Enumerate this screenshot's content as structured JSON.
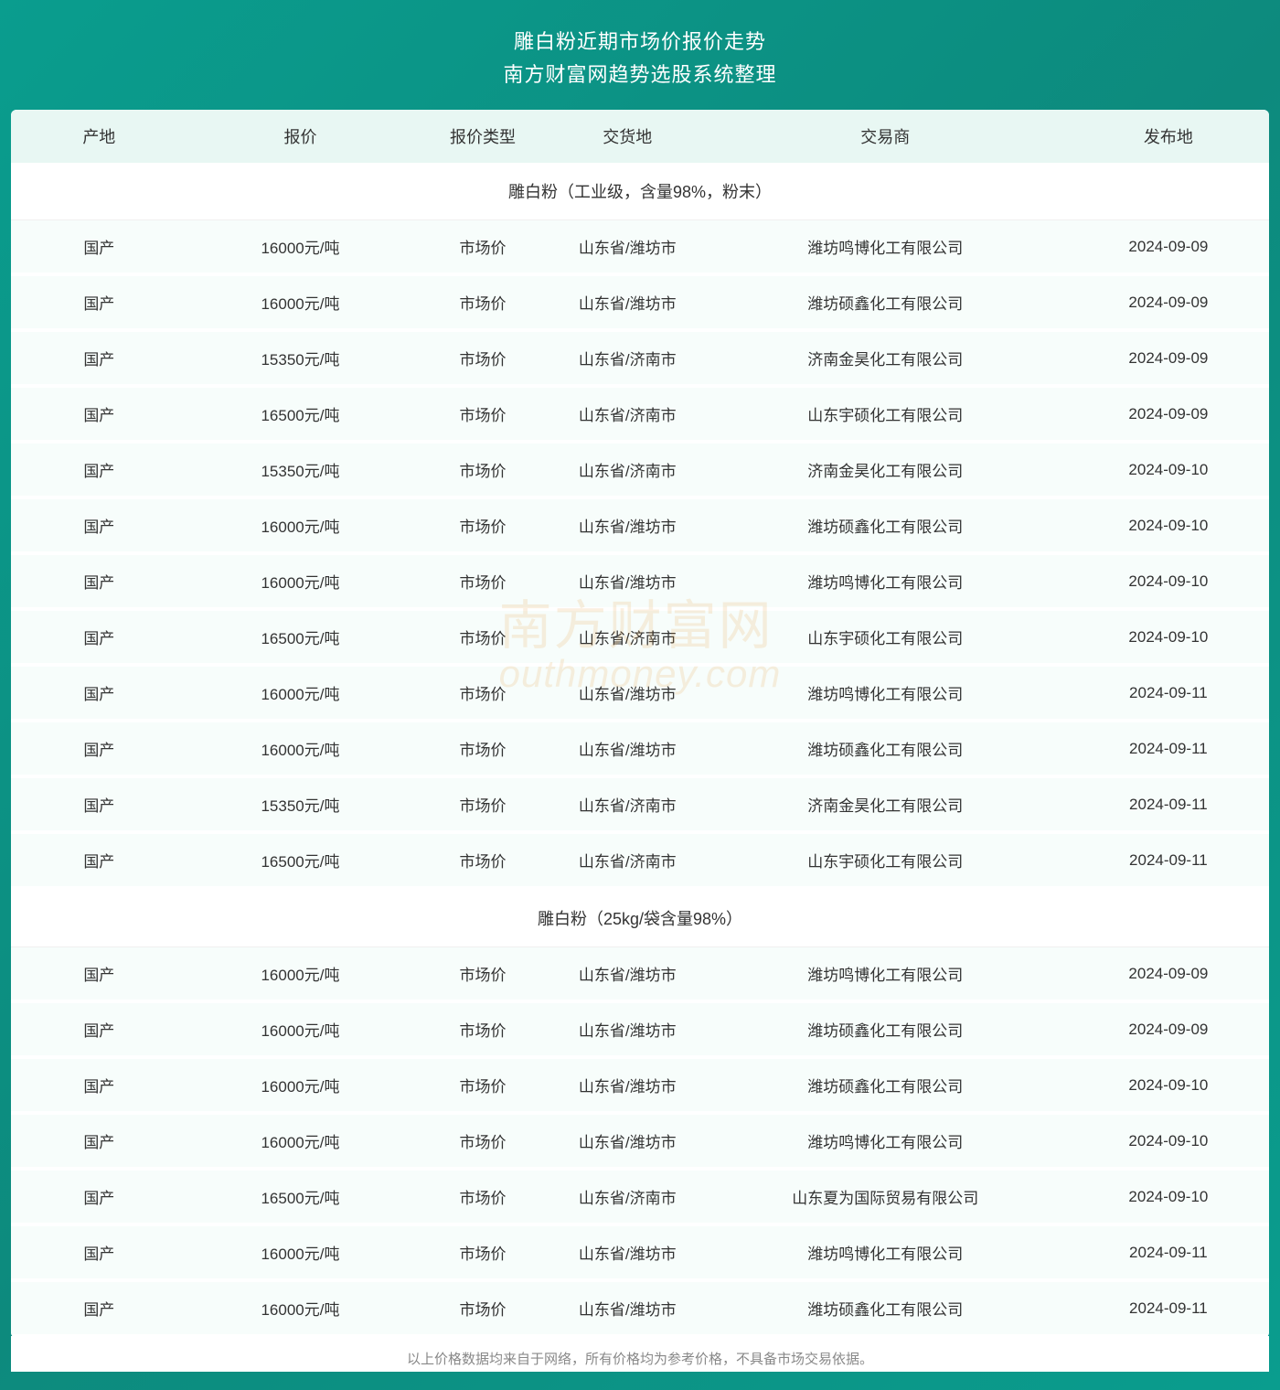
{
  "header": {
    "title_main": "雕白粉近期市场价报价走势",
    "title_sub": "南方财富网趋势选股系统整理"
  },
  "table": {
    "columns": [
      "产地",
      "报价",
      "报价类型",
      "交货地",
      "交易商",
      "发布地"
    ],
    "column_widths": [
      "14%",
      "18%",
      "11%",
      "12%",
      "29%",
      "16%"
    ],
    "header_bg": "#e8f7f3",
    "row_bg": "#f7fdfb",
    "section_bg": "#ffffff",
    "text_color": "#333333",
    "font_size_header": 18,
    "font_size_cell": 17,
    "sections": [
      {
        "title": "雕白粉（工业级，含量98%，粉末）",
        "rows": [
          [
            "国产",
            "16000元/吨",
            "市场价",
            "山东省/潍坊市",
            "潍坊鸣博化工有限公司",
            "2024-09-09"
          ],
          [
            "国产",
            "16000元/吨",
            "市场价",
            "山东省/潍坊市",
            "潍坊硕鑫化工有限公司",
            "2024-09-09"
          ],
          [
            "国产",
            "15350元/吨",
            "市场价",
            "山东省/济南市",
            "济南金昊化工有限公司",
            "2024-09-09"
          ],
          [
            "国产",
            "16500元/吨",
            "市场价",
            "山东省/济南市",
            "山东宇硕化工有限公司",
            "2024-09-09"
          ],
          [
            "国产",
            "15350元/吨",
            "市场价",
            "山东省/济南市",
            "济南金昊化工有限公司",
            "2024-09-10"
          ],
          [
            "国产",
            "16000元/吨",
            "市场价",
            "山东省/潍坊市",
            "潍坊硕鑫化工有限公司",
            "2024-09-10"
          ],
          [
            "国产",
            "16000元/吨",
            "市场价",
            "山东省/潍坊市",
            "潍坊鸣博化工有限公司",
            "2024-09-10"
          ],
          [
            "国产",
            "16500元/吨",
            "市场价",
            "山东省/济南市",
            "山东宇硕化工有限公司",
            "2024-09-10"
          ],
          [
            "国产",
            "16000元/吨",
            "市场价",
            "山东省/潍坊市",
            "潍坊鸣博化工有限公司",
            "2024-09-11"
          ],
          [
            "国产",
            "16000元/吨",
            "市场价",
            "山东省/潍坊市",
            "潍坊硕鑫化工有限公司",
            "2024-09-11"
          ],
          [
            "国产",
            "15350元/吨",
            "市场价",
            "山东省/济南市",
            "济南金昊化工有限公司",
            "2024-09-11"
          ],
          [
            "国产",
            "16500元/吨",
            "市场价",
            "山东省/济南市",
            "山东宇硕化工有限公司",
            "2024-09-11"
          ]
        ]
      },
      {
        "title": "雕白粉（25kg/袋含量98%）",
        "rows": [
          [
            "国产",
            "16000元/吨",
            "市场价",
            "山东省/潍坊市",
            "潍坊鸣博化工有限公司",
            "2024-09-09"
          ],
          [
            "国产",
            "16000元/吨",
            "市场价",
            "山东省/潍坊市",
            "潍坊硕鑫化工有限公司",
            "2024-09-09"
          ],
          [
            "国产",
            "16000元/吨",
            "市场价",
            "山东省/潍坊市",
            "潍坊硕鑫化工有限公司",
            "2024-09-10"
          ],
          [
            "国产",
            "16000元/吨",
            "市场价",
            "山东省/潍坊市",
            "潍坊鸣博化工有限公司",
            "2024-09-10"
          ],
          [
            "国产",
            "16500元/吨",
            "市场价",
            "山东省/济南市",
            "山东夏为国际贸易有限公司",
            "2024-09-10"
          ],
          [
            "国产",
            "16000元/吨",
            "市场价",
            "山东省/潍坊市",
            "潍坊鸣博化工有限公司",
            "2024-09-11"
          ],
          [
            "国产",
            "16000元/吨",
            "市场价",
            "山东省/潍坊市",
            "潍坊硕鑫化工有限公司",
            "2024-09-11"
          ]
        ]
      }
    ]
  },
  "footer": {
    "note": "以上价格数据均来自于网络，所有价格均为参考价格，不具备市场交易依据。"
  },
  "watermark": {
    "line1": "南方财富网",
    "line2": "outhmoney.com"
  },
  "styling": {
    "page_bg_gradient_start": "#0a9d8e",
    "page_bg_gradient_end": "#0d8a7d",
    "title_color": "#ffffff",
    "footer_color": "#888888",
    "watermark_color": "rgba(230,150,50,0.15)"
  }
}
